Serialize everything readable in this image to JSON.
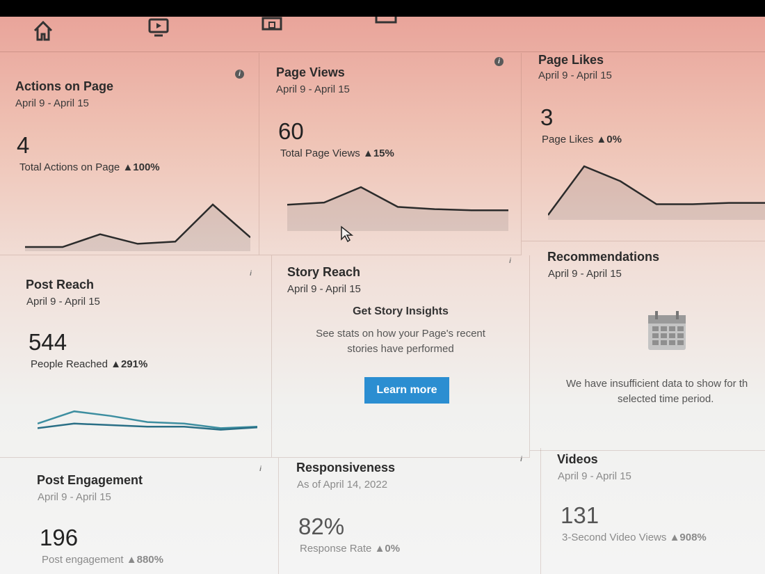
{
  "nav": {
    "icons": [
      "home-icon",
      "video-icon",
      "shop-icon",
      "panel-icon"
    ]
  },
  "cards": {
    "actions": {
      "title": "Actions on Page",
      "date": "April 9 - April 15",
      "value": "4",
      "metric_label": "Total Actions on Page",
      "change": "▲100%",
      "trend": [
        2,
        2,
        14,
        5,
        7,
        42,
        11
      ]
    },
    "page_views": {
      "title": "Page Views",
      "date": "April 9 - April 15",
      "value": "60",
      "metric_label": "Total Page Views",
      "change": "▲15%",
      "trend": [
        22,
        24,
        38,
        20,
        18,
        17,
        17
      ]
    },
    "page_likes": {
      "title": "Page Likes",
      "date": "April 9 - April 15",
      "value": "3",
      "metric_label": "Page Likes",
      "change": "▲0%",
      "trend": [
        2,
        38,
        27,
        10,
        10,
        11,
        11
      ]
    },
    "post_reach": {
      "title": "Post Reach",
      "date": "April 9 - April 15",
      "value": "544",
      "metric_label": "People Reached",
      "change": "▲291%",
      "trend_a": [
        12,
        28,
        22,
        14,
        12,
        6,
        8
      ],
      "trend_b": [
        6,
        12,
        10,
        8,
        8,
        4,
        7
      ]
    },
    "story_reach": {
      "title": "Story Reach",
      "date": "April 9 - April 15",
      "heading": "Get Story Insights",
      "body_line1": "See stats on how your Page's recent",
      "body_line2": "stories have performed",
      "button": "Learn more"
    },
    "recommendations": {
      "title": "Recommendations",
      "date": "April 9 - April 15",
      "empty_line1": "We have insufficient data to show for th",
      "empty_line2": "selected time period."
    },
    "post_engagement": {
      "title": "Post Engagement",
      "date": "April 9 - April 15",
      "value": "196",
      "metric_label": "Post engagement",
      "change": "▲880%"
    },
    "responsiveness": {
      "title": "Responsiveness",
      "date": "As of April 14, 2022",
      "value": "82%",
      "metric_label": "Response Rate",
      "change": "▲0%"
    },
    "videos": {
      "title": "Videos",
      "date": "April 9 - April 15",
      "value": "131",
      "metric_label": "3-Second Video Views",
      "change": "▲908%"
    }
  },
  "colors": {
    "line": "#2b2b2b",
    "reach_a": "#3d8ea0",
    "reach_b": "#2a6f86",
    "button": "#2b8ed1"
  }
}
